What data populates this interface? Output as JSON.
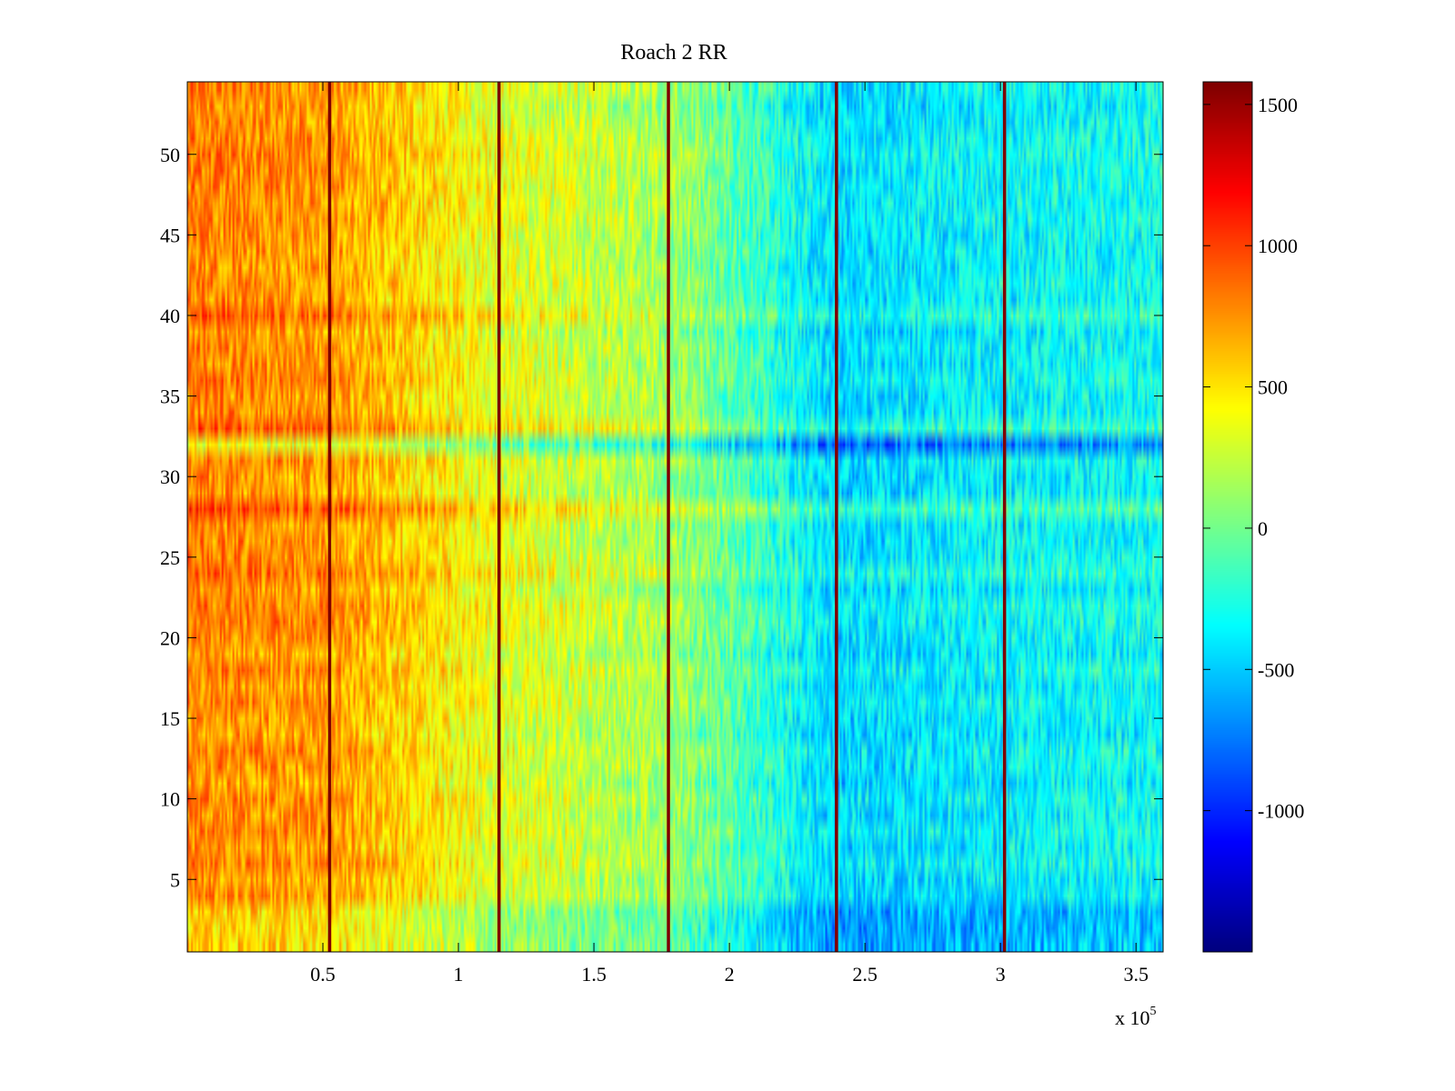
{
  "chart_data": {
    "type": "heatmap",
    "title": "Roach 2 RR",
    "xlabel": "",
    "ylabel": "",
    "x_multiplier_label": "x 10",
    "x_multiplier_exponent": "5",
    "xlim": [
      0,
      360000
    ],
    "ylim": [
      0.5,
      54.5
    ],
    "x_ticks": [
      {
        "value": 50000,
        "label": "0.5"
      },
      {
        "value": 100000,
        "label": "1"
      },
      {
        "value": 150000,
        "label": "1.5"
      },
      {
        "value": 200000,
        "label": "2"
      },
      {
        "value": 250000,
        "label": "2.5"
      },
      {
        "value": 300000,
        "label": "3"
      },
      {
        "value": 350000,
        "label": "3.5"
      }
    ],
    "y_ticks": [
      5,
      10,
      15,
      20,
      25,
      30,
      35,
      40,
      45,
      50
    ],
    "colorbar": {
      "colormap": "jet",
      "clim": [
        -1500,
        1580
      ],
      "ticks": [
        1500,
        1000,
        500,
        0,
        -500,
        -1000
      ]
    },
    "rows": 54,
    "column_trend": [
      {
        "x": 0,
        "value": 800
      },
      {
        "x": 52000,
        "value": 720
      },
      {
        "x": 115000,
        "value": 350
      },
      {
        "x": 177000,
        "value": 150
      },
      {
        "x": 239000,
        "value": -450
      },
      {
        "x": 301000,
        "value": -350
      },
      {
        "x": 360000,
        "value": -300
      }
    ],
    "band_lines": [
      {
        "x": 52500,
        "value": 1580
      },
      {
        "x": 115000,
        "value": 1580
      },
      {
        "x": 177500,
        "value": 1580
      },
      {
        "x": 239500,
        "value": 1580
      },
      {
        "x": 301500,
        "value": 1580
      }
    ],
    "row_offsets": [
      {
        "row": 1,
        "value": -250
      },
      {
        "row": 2,
        "value": -200
      },
      {
        "row": 3,
        "value": -150
      },
      {
        "row": 24,
        "value": 150
      },
      {
        "row": 28,
        "value": 180
      },
      {
        "row": 32,
        "value": -400
      },
      {
        "row": 33,
        "value": 150
      },
      {
        "row": 40,
        "value": 100
      }
    ]
  }
}
